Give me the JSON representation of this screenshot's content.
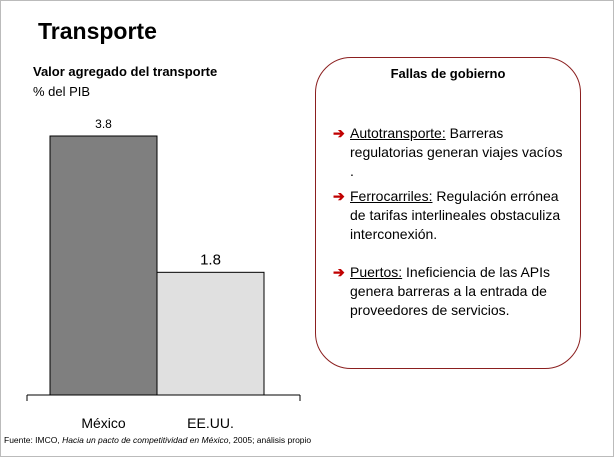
{
  "slide_title": "Transporte",
  "chart_data": {
    "type": "bar",
    "title": "Valor agregado del transporte",
    "subtitle": "% del PIB",
    "categories": [
      "México",
      "EE.UU."
    ],
    "values": [
      3.8,
      1.8
    ],
    "colors": [
      "#7f7f7f",
      "#e0e0e0"
    ]
  },
  "panel": {
    "title": "Fallas de gobierno",
    "items": [
      {
        "heading": "Autotransporte:",
        "text": "Barreras regulatorias generan viajes vacíos ."
      },
      {
        "heading": "Ferrocarriles:",
        "text": "Regulación errónea de tarifas interlineales obstaculiza interconexión."
      },
      {
        "heading": "Puertos:",
        "text": "Ineficiencia de las APIs genera barreras a la entrada de proveedores de servicios."
      }
    ]
  },
  "source": {
    "prefix": "Fuente: IMCO,",
    "work": "Hacia un pacto de competitividad en México",
    "suffix": ", 2005; análisis propio"
  }
}
